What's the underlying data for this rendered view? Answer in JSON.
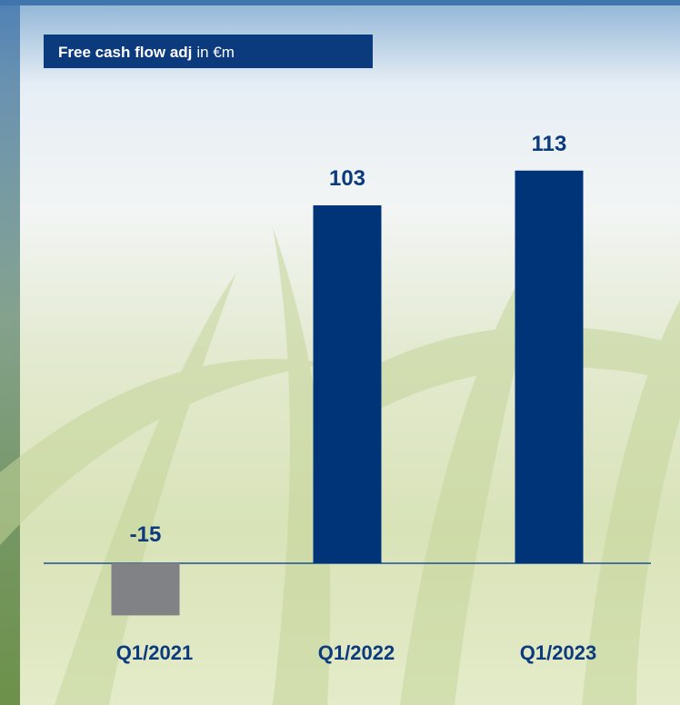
{
  "chart_data": {
    "type": "bar",
    "title": "Free cash flow adj",
    "unit": "in €m",
    "categories": [
      "Q1/2021",
      "Q1/2022",
      "Q1/2023"
    ],
    "values": [
      -15,
      103,
      113
    ],
    "colors": [
      "#808285",
      "#003478",
      "#003478"
    ]
  }
}
